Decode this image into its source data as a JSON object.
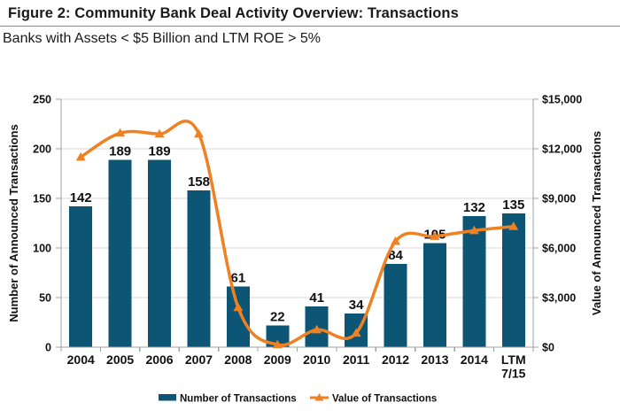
{
  "header": {
    "title": "Figure 2: Community Bank Deal Activity Overview: Transactions",
    "subtitle": "Banks with Assets < $5 Billion and LTM ROE > 5%"
  },
  "chart_data": {
    "type": "bar",
    "subtype": "bar-line-combo",
    "categories": [
      "2004",
      "2005",
      "2006",
      "2007",
      "2008",
      "2009",
      "2010",
      "2011",
      "2012",
      "2013",
      "2014",
      "LTM 7/15"
    ],
    "series": [
      {
        "name": "Number of Transactions",
        "type": "bar",
        "axis": "left",
        "color": "#0d5575",
        "values": [
          142,
          189,
          189,
          158,
          61,
          22,
          41,
          34,
          84,
          105,
          132,
          135
        ]
      },
      {
        "name": "Value of Transactions",
        "type": "line",
        "axis": "right",
        "color": "#ef8122",
        "values": [
          11500,
          12950,
          12900,
          12900,
          2400,
          150,
          1050,
          850,
          6400,
          6700,
          7050,
          7300
        ]
      }
    ],
    "left_axis": {
      "title": "Number of Announced Transactions",
      "min": 0,
      "max": 250,
      "ticks": [
        0,
        50,
        100,
        150,
        200,
        250
      ]
    },
    "right_axis": {
      "title": "Value of Announced Transactions",
      "min": 0,
      "max": 15000,
      "tick_values": [
        0,
        3000,
        6000,
        9000,
        12000,
        15000
      ],
      "tick_labels": [
        "$0",
        "$3,000",
        "$6,000",
        "$9,000",
        "$12,000",
        "$15,000"
      ]
    },
    "bar_value_labels_shown": true,
    "grid": true,
    "legend_position": "bottom",
    "legend": [
      "Number of Transactions",
      "Value of Transactions"
    ],
    "colors": {
      "gridline": "#d9d9d9",
      "axis": "#a0a0a0",
      "text": "#111111"
    }
  }
}
